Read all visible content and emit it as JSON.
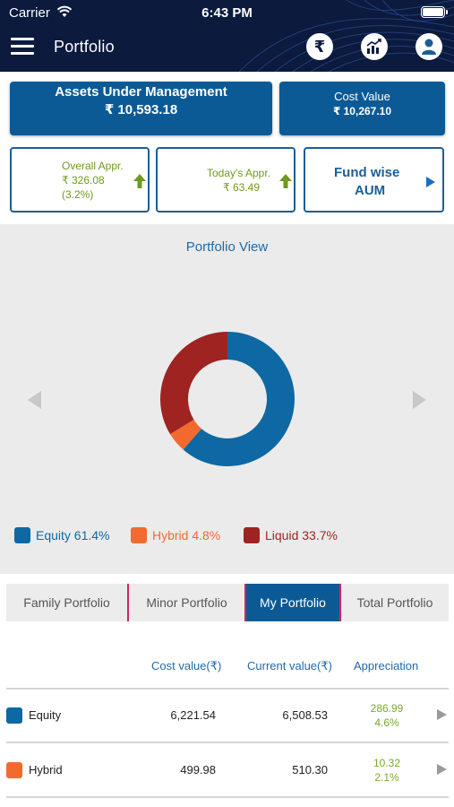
{
  "status_bar": {
    "carrier": "Carrier",
    "time": "6:43 PM"
  },
  "header": {
    "title": "Portfolio",
    "rupee_symbol": "₹"
  },
  "summary": {
    "aum_title": "Assets Under Management",
    "aum_value": "₹ 10,593.18",
    "cost_title": "Cost Value",
    "cost_value": "₹ 10,267.10",
    "overall_label": "Overall Appr.",
    "overall_value": "₹ 326.08",
    "overall_pct": "(3.2%)",
    "today_label": "Today's Appr.",
    "today_value": "₹ 63.49",
    "fund_wise_line1": "Fund wise",
    "fund_wise_line2": "AUM"
  },
  "portfolio_view": {
    "title": "Portfolio View",
    "legend": [
      {
        "label": "Equity 61.4%",
        "color": "#0e68a3"
      },
      {
        "label": "Hybrid 4.8%",
        "color": "#f26a2e"
      },
      {
        "label": "Liquid 33.7%",
        "color": "#9e2321"
      }
    ]
  },
  "chart_data": {
    "type": "pie",
    "title": "Portfolio View",
    "categories": [
      "Equity",
      "Hybrid",
      "Liquid"
    ],
    "values": [
      61.4,
      4.8,
      33.7
    ],
    "colors": [
      "#0e68a3",
      "#f26a2e",
      "#9e2321"
    ],
    "legend": "bottom"
  },
  "tabs": [
    {
      "label": "Family Portfolio",
      "active": false
    },
    {
      "label": "Minor Portfolio",
      "active": false
    },
    {
      "label": "My Portfolio",
      "active": true
    },
    {
      "label": "Total Portfolio",
      "active": false
    }
  ],
  "table": {
    "headers": {
      "cost": "Cost value(₹)",
      "current": "Current value(₹)",
      "appreciation": "Appreciation"
    },
    "rows": [
      {
        "name": "Equity",
        "color": "#0e68a3",
        "cost": "6,221.54",
        "current": "6,508.53",
        "appr_value": "286.99",
        "appr_pct": "4.6%"
      },
      {
        "name": "Hybrid",
        "color": "#f26a2e",
        "cost": "499.98",
        "current": "510.30",
        "appr_value": "10.32",
        "appr_pct": "2.1%"
      }
    ]
  },
  "colors": {
    "header_bg": "#0b1a3d",
    "primary": "#0b5a96",
    "accent_green": "#6f9a1e",
    "tab_separator": "#d1236a"
  }
}
